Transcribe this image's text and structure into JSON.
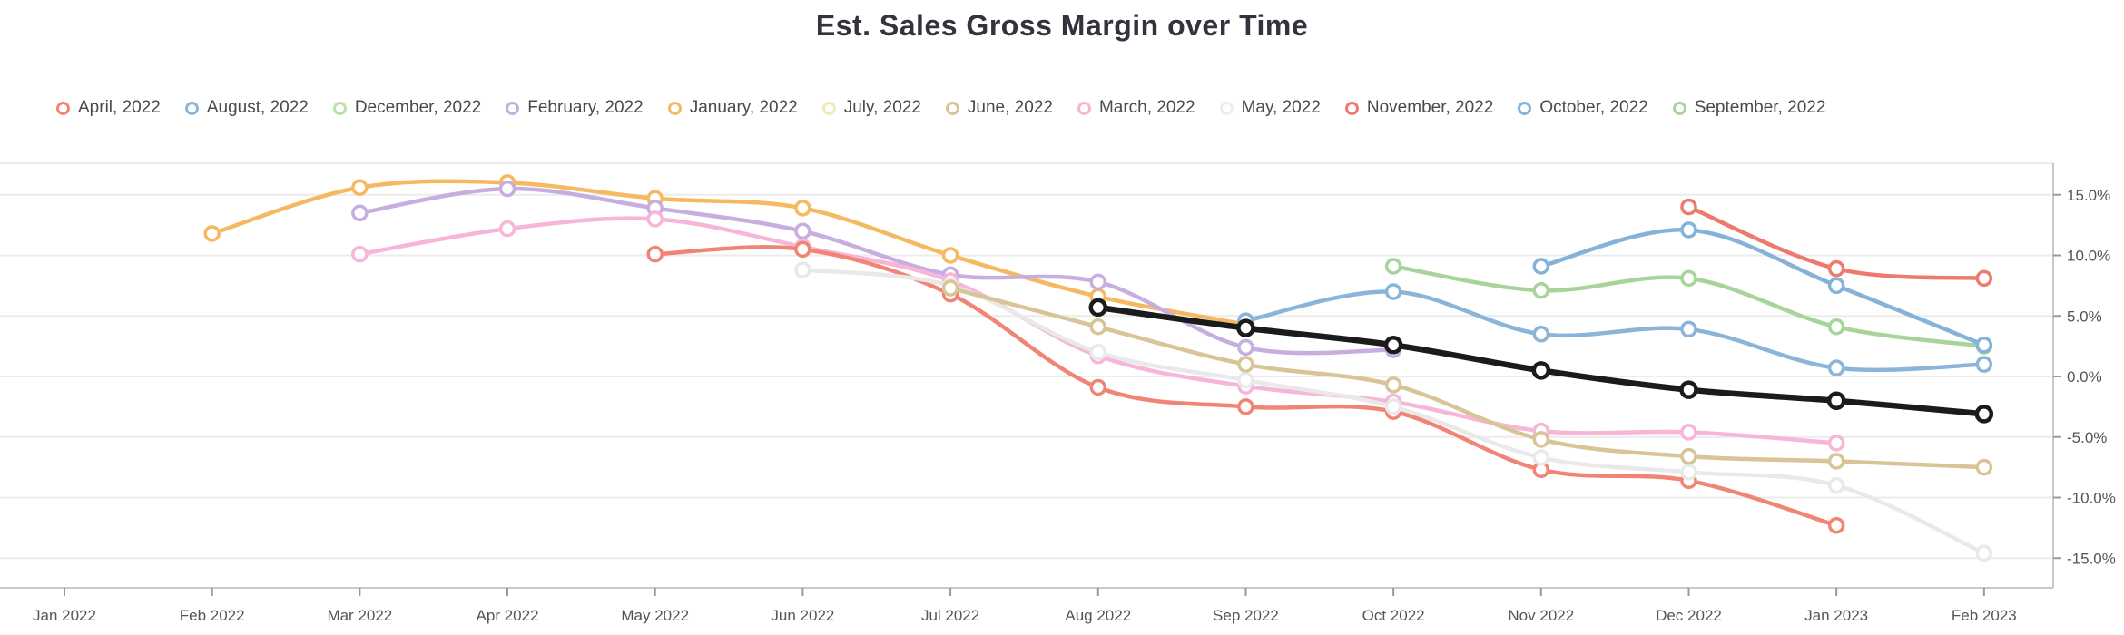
{
  "header": {
    "title": "Est. Sales Gross Margin over Time"
  },
  "chart_data": {
    "type": "line",
    "title": "Est. Sales Gross Margin over Time",
    "unit": "%",
    "grid": true,
    "legend_position": "top",
    "x_categories": [
      "Jan 2022",
      "Feb 2022",
      "Mar 2022",
      "Apr 2022",
      "May 2022",
      "Jun 2022",
      "Jul 2022",
      "Aug 2022",
      "Sep 2022",
      "Oct 2022",
      "Nov 2022",
      "Dec 2022",
      "Jan 2023",
      "Feb 2023"
    ],
    "y_tick_labels": [
      "15.0%",
      "10.0%",
      "5.0%",
      "0.0%",
      "-5.0%",
      "-10.0%",
      "-15.0%"
    ],
    "y_tick_values": [
      15,
      10,
      5,
      0,
      -5,
      -10,
      -15
    ],
    "ylim": [
      -17.5,
      17.6
    ],
    "legend": [
      {
        "label": "April, 2022",
        "color": "#f08575"
      },
      {
        "label": "August, 2022",
        "color": "#8ab4d8"
      },
      {
        "label": "December, 2022",
        "color": "#b9e0ac"
      },
      {
        "label": "February, 2022",
        "color": "#c7aee0"
      },
      {
        "label": "January, 2022",
        "color": "#f5b961"
      },
      {
        "label": "July, 2022",
        "color": "#f3e9c0"
      },
      {
        "label": "June, 2022",
        "color": "#d8c496"
      },
      {
        "label": "March, 2022",
        "color": "#f7b6d7"
      },
      {
        "label": "May, 2022",
        "color": "#ededed"
      },
      {
        "label": "November, 2022",
        "color": "#ee7a6e"
      },
      {
        "label": "October, 2022",
        "color": "#85b2d8"
      },
      {
        "label": "September, 2022",
        "color": "#a6d49b"
      }
    ],
    "series": [
      {
        "name": "January, 2022",
        "color": "#f5b961",
        "start_index": 1,
        "values": [
          11.8,
          15.6,
          16.0,
          14.7,
          13.9,
          10.0,
          6.6,
          4.3
        ]
      },
      {
        "name": "February, 2022",
        "color": "#c7aee0",
        "start_index": 2,
        "values": [
          13.5,
          15.5,
          13.9,
          12.0,
          8.4,
          7.8,
          2.4,
          2.2
        ]
      },
      {
        "name": "March, 2022",
        "color": "#f7b6d7",
        "start_index": 2,
        "values": [
          10.1,
          12.2,
          13.0,
          10.7,
          7.9,
          1.7,
          -0.8,
          -2.1,
          -4.5,
          -4.6,
          -5.5
        ]
      },
      {
        "name": "April, 2022",
        "color": "#f08575",
        "start_index": 4,
        "values": [
          10.1,
          10.5,
          6.8,
          -0.9,
          -2.5,
          -2.9,
          -7.7,
          -8.6,
          -12.3
        ]
      },
      {
        "name": "May, 2022",
        "color": "#e9e9e9",
        "start_index": 5,
        "values": [
          8.8,
          7.5,
          2.0,
          -0.3,
          -2.5,
          -6.7,
          -7.9,
          -9.0,
          -14.6
        ]
      },
      {
        "name": "June, 2022",
        "color": "#d8c496",
        "start_index": 6,
        "values": [
          7.3,
          4.1,
          1.0,
          -0.7,
          -5.2,
          -6.6,
          -7.0,
          -7.5
        ]
      },
      {
        "name": "July, 2022",
        "color": "#1b1b1b",
        "start_index": 7,
        "emphasis": true,
        "values": [
          5.7,
          4.0,
          2.6,
          0.5,
          -1.1,
          -2.0,
          -3.1
        ]
      },
      {
        "name": "August, 2022",
        "color": "#8ab4d8",
        "start_index": 8,
        "values": [
          4.6,
          7.0,
          3.5,
          3.9,
          0.7,
          1.0
        ]
      },
      {
        "name": "September, 2022",
        "color": "#a6d49b",
        "start_index": 9,
        "values": [
          9.1,
          7.1,
          8.1,
          4.1,
          2.5
        ]
      },
      {
        "name": "October, 2022",
        "color": "#85b2d8",
        "start_index": 10,
        "values": [
          9.1,
          12.1,
          7.5,
          2.6
        ]
      },
      {
        "name": "November, 2022",
        "color": "#ee7a6e",
        "start_index": 11,
        "values": [
          14.0,
          8.9,
          8.1
        ]
      },
      {
        "name": "December, 2022",
        "color": "#b9e0ac",
        "start_index": 12,
        "values": []
      }
    ]
  },
  "style": {
    "grid_color": "#ececec",
    "axis_color": "#c9c9c9",
    "tick_color": "#999999",
    "label_color": "#555555",
    "background": "#ffffff"
  }
}
